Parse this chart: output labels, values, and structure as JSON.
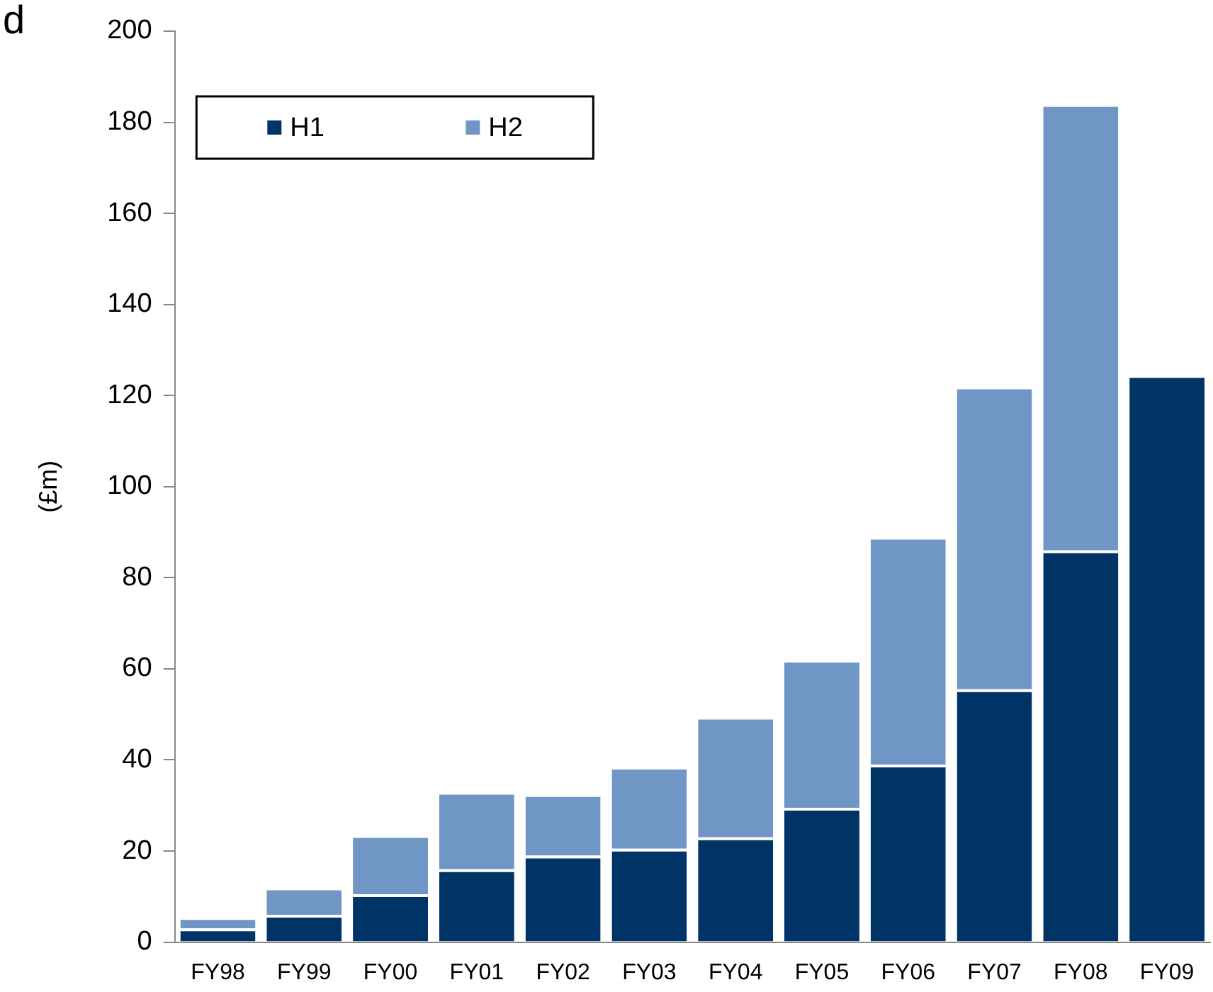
{
  "chart_data": {
    "type": "bar",
    "stacked": true,
    "ylabel": "(£m)",
    "annotations": [
      "d"
    ],
    "categories": [
      "FY98",
      "FY99",
      "FY00",
      "FY01",
      "FY02",
      "FY03",
      "FY04",
      "FY05",
      "FY06",
      "FY07",
      "FY08",
      "FY09"
    ],
    "series": [
      {
        "name": "H1",
        "color": "#003366",
        "values": [
          3,
          6,
          10.5,
          16,
          19,
          20.5,
          23,
          29.5,
          39,
          55.5,
          86,
          124.5
        ]
      },
      {
        "name": "H2",
        "color": "#7096c6",
        "values": [
          2.5,
          6,
          13,
          17,
          13.5,
          18,
          26.5,
          32.5,
          50,
          66.5,
          98,
          null
        ]
      }
    ],
    "ylim": [
      0,
      200
    ],
    "yticks": [
      0,
      20,
      40,
      60,
      80,
      100,
      120,
      140,
      160,
      180,
      200
    ],
    "grid": false,
    "legend": "top"
  }
}
